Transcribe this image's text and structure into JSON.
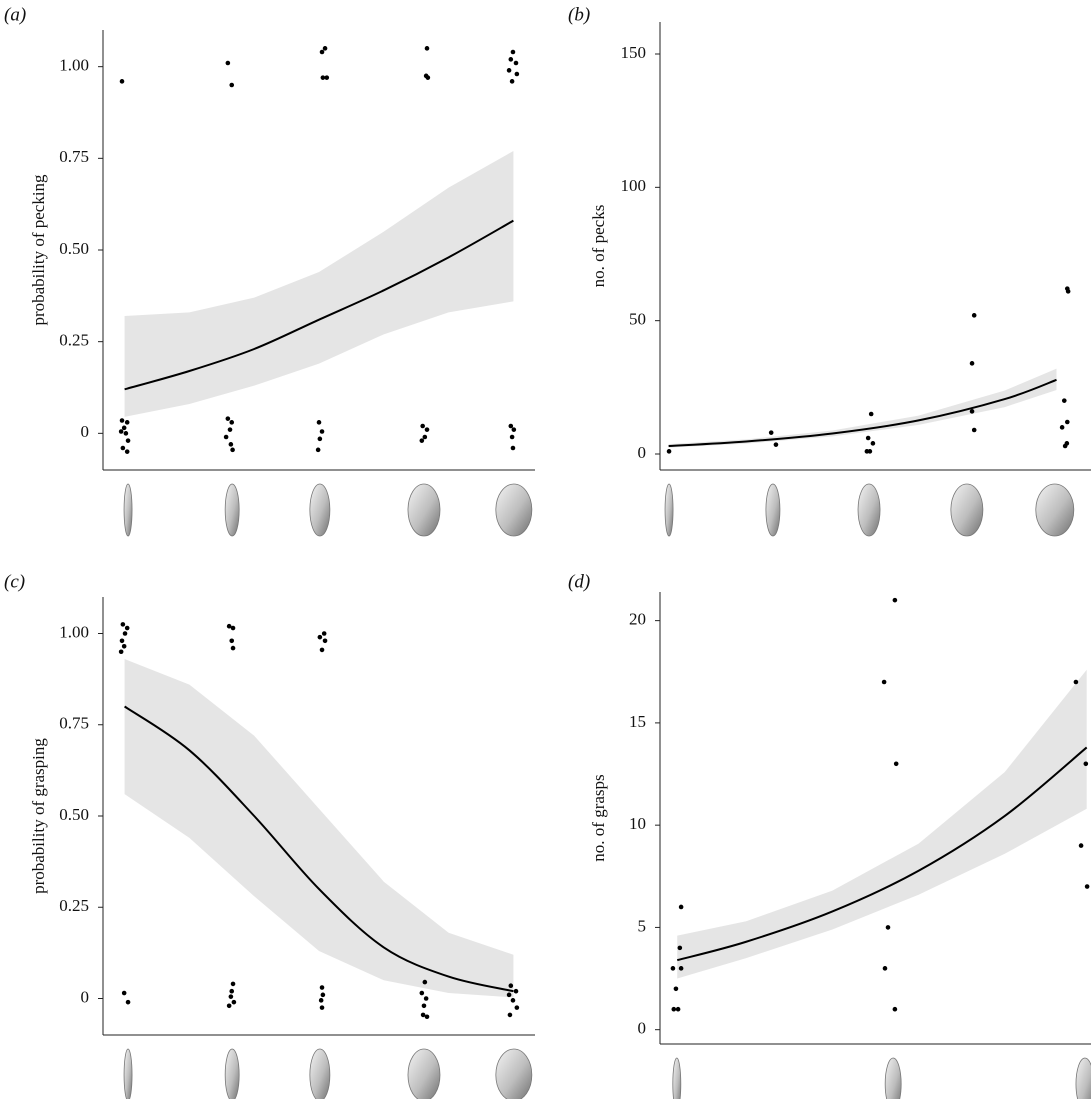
{
  "chart_data": [
    {
      "type": "scatter",
      "label": "(a)",
      "ylabel": "probability of pecking",
      "xlim": [
        0,
        10
      ],
      "ylim": [
        -0.1,
        1.1
      ],
      "yticks": [
        0,
        0.25,
        {
          "value": 0.5,
          "label": "0.50"
        },
        0.75,
        {
          "value": 1,
          "label": "1.00"
        }
      ],
      "levels": [
        0.58,
        2.99,
        5.02,
        7.43,
        9.51
      ],
      "point_color": "#000000",
      "line_color": "#000000",
      "band_color": "#e5e5e5",
      "points": {
        "x": [
          0.44,
          2.89,
          2.98,
          5.07,
          5.14,
          5.09,
          5.18,
          7.5,
          7.48,
          7.52,
          9.49,
          9.44,
          9.56,
          9.4,
          9.58,
          9.47,
          0.44,
          0.56,
          0.49,
          0.42,
          0.53,
          0.58,
          0.46,
          0.56,
          2.89,
          2.98,
          2.94,
          2.85,
          2.96,
          3.0,
          5.0,
          5.07,
          5.02,
          4.98,
          7.4,
          7.5,
          7.45,
          7.38,
          9.44,
          9.51,
          9.47,
          9.49
        ],
        "y": [
          0.96,
          1.01,
          0.95,
          1.04,
          1.05,
          0.97,
          0.97,
          1.05,
          0.975,
          0.97,
          1.04,
          1.02,
          1.01,
          0.99,
          0.98,
          0.96,
          0.035,
          0.03,
          0.015,
          0.005,
          0.0,
          -0.02,
          -0.04,
          -0.05,
          0.04,
          0.03,
          0.01,
          -0.01,
          -0.03,
          -0.045,
          0.03,
          0.005,
          -0.015,
          -0.045,
          0.02,
          0.01,
          -0.01,
          -0.02,
          0.02,
          0.01,
          -0.01,
          -0.04
        ]
      },
      "fit": {
        "x": [
          0.5,
          2,
          3.5,
          5,
          6.5,
          8,
          9.5
        ],
        "values": [
          0.12,
          0.17,
          0.23,
          0.31,
          0.39,
          0.48,
          0.58
        ],
        "lower": [
          0.045,
          0.08,
          0.13,
          0.19,
          0.27,
          0.33,
          0.36
        ],
        "upper": [
          0.32,
          0.33,
          0.37,
          0.44,
          0.55,
          0.67,
          0.77
        ]
      }
    },
    {
      "type": "scatter",
      "label": "(b)",
      "ylabel": "no. of pecks",
      "xlim": [
        0,
        10
      ],
      "ylim": [
        -6,
        162
      ],
      "yticks": [
        0,
        50,
        100,
        150
      ],
      "levels": [
        0.21,
        2.62,
        4.85,
        7.12,
        9.16
      ],
      "point_color": "#000000",
      "line_color": "#000000",
      "band_color": "#e5e5e5",
      "points": {
        "x": [
          0.21,
          2.58,
          2.69,
          4.9,
          4.83,
          4.94,
          4.8,
          4.87,
          7.29,
          7.24,
          7.24,
          7.29,
          9.45,
          9.47,
          9.38,
          9.45,
          9.33,
          9.44,
          9.4
        ],
        "y": [
          1,
          8,
          3.5,
          15,
          6,
          4,
          1,
          1,
          52,
          34,
          16,
          9,
          62,
          61,
          20,
          12,
          10,
          4,
          3
        ]
      },
      "fit": {
        "x": [
          0.2,
          2,
          4,
          6,
          8,
          9.2
        ],
        "values": [
          3,
          4.7,
          7.7,
          12.6,
          20.6,
          27.8
        ],
        "lower": [
          2.4,
          3.9,
          6.6,
          10.9,
          17.6,
          24
        ],
        "upper": [
          3.7,
          5.5,
          8.8,
          14.4,
          23.8,
          32
        ]
      }
    },
    {
      "type": "scatter",
      "label": "(c)",
      "ylabel": "probability of grasping",
      "xlim": [
        0,
        10
      ],
      "ylim": [
        -0.1,
        1.1
      ],
      "yticks": [
        0,
        0.25,
        {
          "value": 0.5,
          "label": "0.50"
        },
        0.75,
        {
          "value": 1,
          "label": "1.00"
        }
      ],
      "levels": [
        0.58,
        2.99,
        5.02,
        7.43,
        9.51
      ],
      "point_color": "#000000",
      "line_color": "#000000",
      "band_color": "#e5e5e5",
      "points": {
        "x": [
          0.46,
          0.56,
          0.51,
          0.44,
          0.49,
          0.42,
          0.49,
          0.58,
          2.92,
          3.01,
          2.98,
          3.01,
          3.01,
          2.98,
          2.96,
          3.03,
          2.92,
          5.12,
          5.02,
          5.14,
          5.07,
          5.07,
          5.09,
          5.05,
          5.07,
          7.45,
          7.38,
          7.48,
          7.43,
          7.41,
          7.5,
          9.44,
          9.56,
          9.4,
          9.49,
          9.58,
          9.42
        ],
        "y": [
          1.025,
          1.015,
          1.0,
          0.98,
          0.965,
          0.95,
          0.015,
          -0.01,
          1.02,
          1.015,
          0.98,
          0.96,
          0.04,
          0.02,
          0.005,
          -0.01,
          -0.02,
          1.0,
          0.99,
          0.98,
          0.955,
          0.03,
          0.01,
          -0.005,
          -0.025,
          0.045,
          0.015,
          0.0,
          -0.02,
          -0.045,
          -0.05,
          0.035,
          0.02,
          0.01,
          -0.005,
          -0.025,
          -0.045
        ]
      },
      "fit": {
        "x": [
          0.5,
          2,
          3.5,
          5,
          6.5,
          8,
          9.5
        ],
        "values": [
          0.8,
          0.68,
          0.5,
          0.3,
          0.14,
          0.06,
          0.02
        ],
        "lower": [
          0.56,
          0.44,
          0.28,
          0.13,
          0.05,
          0.015,
          0.003
        ],
        "upper": [
          0.93,
          0.86,
          0.72,
          0.52,
          0.32,
          0.18,
          0.12
        ]
      }
    },
    {
      "type": "scatter",
      "label": "(d)",
      "ylabel": "no. of grasps",
      "xlim": [
        0,
        10
      ],
      "ylim": [
        -0.7,
        21.4
      ],
      "yticks": [
        0,
        5,
        10,
        15,
        20
      ],
      "levels": [
        0.39,
        5.41,
        9.86
      ],
      "point_color": "#000000",
      "line_color": "#000000",
      "band_color": "#e5e5e5",
      "points": {
        "x": [
          0.32,
          0.42,
          0.37,
          0.3,
          0.49,
          0.46,
          0.49,
          5.2,
          5.45,
          5.48,
          5.29,
          5.22,
          5.45,
          9.65,
          9.88,
          9.77,
          9.91
        ],
        "y": [
          1,
          1,
          2,
          3,
          3,
          4,
          6,
          17,
          21,
          13,
          5,
          3,
          1,
          17,
          13,
          9,
          7
        ]
      },
      "fit": {
        "x": [
          0.4,
          2,
          4,
          6,
          8,
          9.9
        ],
        "values": [
          3.4,
          4.3,
          5.78,
          7.77,
          10.45,
          13.8
        ],
        "lower": [
          2.5,
          3.5,
          4.9,
          6.6,
          8.6,
          10.8
        ],
        "upper": [
          4.6,
          5.3,
          6.8,
          9.1,
          12.6,
          17.6
        ]
      }
    }
  ]
}
